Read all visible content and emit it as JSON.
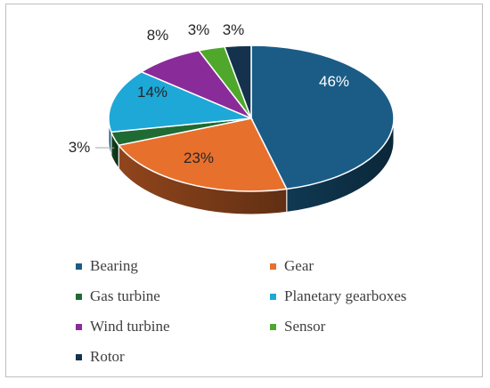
{
  "chart_data": {
    "type": "pie",
    "style": "3d",
    "categories": [
      "Bearing",
      "Gear",
      "Gas turbine",
      "Planetary gearboxes",
      "Wind turbine",
      "Sensor",
      "Rotor"
    ],
    "values": [
      46,
      23,
      3,
      14,
      8,
      3,
      3
    ],
    "data_labels": [
      "46%",
      "23%",
      "3%",
      "14%",
      "8%",
      "3%",
      "3%"
    ],
    "colors": [
      "#1a5c86",
      "#e8702d",
      "#1f6b33",
      "#1ea8d8",
      "#8a2b9a",
      "#4fa82c",
      "#14324d"
    ],
    "legend_position": "bottom"
  }
}
